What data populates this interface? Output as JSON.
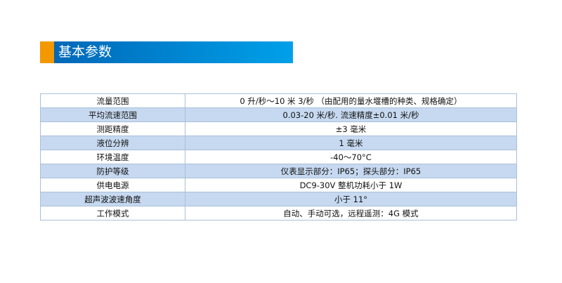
{
  "section_title": "基本参数",
  "colors": {
    "accent": "#f39800",
    "bar_start": "#0068b7",
    "bar_end": "#00a0e9",
    "alt_row": "#c6d9f0"
  },
  "rows": [
    {
      "label": "流量范围",
      "value": "0 升/秒～10 米 3/秒 （由配用的量水堰槽的种类、规格确定）"
    },
    {
      "label": "平均流速范围",
      "value": "0.03-20 米/秒. 流速精度±0.01 米/秒"
    },
    {
      "label": "测距精度",
      "value": "±3 毫米"
    },
    {
      "label": "液位分辨",
      "value": "1 毫米"
    },
    {
      "label": "环境温度",
      "value": "-40～70°C"
    },
    {
      "label": "防护等级",
      "value": "仪表显示部分：IP65；探头部分：IP65"
    },
    {
      "label": "供电电源",
      "value": "DC9-30V 整机功耗小于 1W"
    },
    {
      "label": "超声波波速角度",
      "value": "小于 11°"
    },
    {
      "label": "工作模式",
      "value": "自动、手动可选，远程遥测：4G 模式"
    }
  ]
}
